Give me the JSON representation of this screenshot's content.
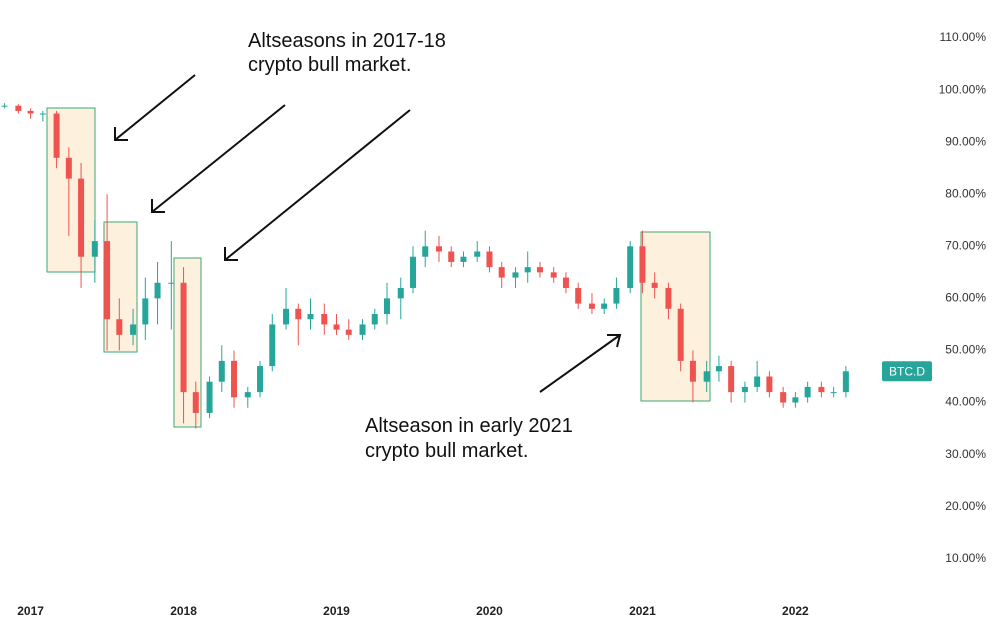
{
  "chart_data": {
    "type": "candlestick",
    "annotations": [
      {
        "lines": [
          "Altseasons in 2017-18",
          "crypto bull market."
        ]
      },
      {
        "lines": [
          "Altseason in early 2021",
          "crypto bull market."
        ]
      }
    ],
    "symbol": "BTC.D",
    "up_color": "#26a69a",
    "down_color": "#ef5350",
    "x": [
      2016.83,
      2016.92,
      2017.0,
      2017.08,
      2017.17,
      2017.25,
      2017.33,
      2017.42,
      2017.5,
      2017.58,
      2017.67,
      2017.75,
      2017.83,
      2017.92,
      2018.0,
      2018.08,
      2018.17,
      2018.25,
      2018.33,
      2018.42,
      2018.5,
      2018.58,
      2018.67,
      2018.75,
      2018.83,
      2018.92,
      2019.0,
      2019.08,
      2019.17,
      2019.25,
      2019.33,
      2019.42,
      2019.5,
      2019.58,
      2019.67,
      2019.75,
      2019.83,
      2019.92,
      2020.0,
      2020.08,
      2020.17,
      2020.25,
      2020.33,
      2020.42,
      2020.5,
      2020.58,
      2020.67,
      2020.75,
      2020.83,
      2020.92,
      2021.0,
      2021.08,
      2021.17,
      2021.25,
      2021.33,
      2021.42,
      2021.5,
      2021.58,
      2021.67,
      2021.75,
      2021.83,
      2021.92,
      2022.0,
      2022.08,
      2022.17,
      2022.25,
      2022.33
    ],
    "open": [
      97,
      97,
      96,
      95.5,
      95.5,
      87,
      83,
      68,
      71,
      56,
      53,
      55,
      60,
      63,
      63,
      42,
      38,
      44,
      48,
      41,
      42,
      47,
      55,
      58,
      56,
      57,
      55,
      54,
      53,
      55,
      57,
      60,
      62,
      68,
      70,
      69,
      67,
      68,
      69,
      66,
      64,
      65,
      66,
      65,
      64,
      62,
      59,
      58,
      59,
      62,
      70,
      63,
      62,
      58,
      48,
      44,
      46,
      47,
      42,
      43,
      45,
      42,
      40,
      41,
      43,
      42,
      42
    ],
    "high": [
      97.5,
      97.3,
      96.5,
      96,
      96,
      89,
      86,
      75,
      80,
      60,
      58,
      64,
      67,
      71,
      66,
      44,
      45,
      51,
      50,
      43,
      48,
      57,
      62,
      59,
      60,
      59,
      57,
      56,
      56,
      58,
      63,
      64,
      70,
      73,
      72,
      70,
      69,
      71,
      70,
      67,
      66,
      69,
      67,
      66,
      65,
      63,
      61,
      60,
      64,
      71,
      73,
      65,
      63,
      59,
      50,
      48,
      49,
      48,
      44,
      48,
      46,
      43,
      42,
      44,
      44,
      43,
      47
    ],
    "low": [
      96.5,
      95.5,
      94.5,
      94,
      85,
      72,
      62,
      63,
      50,
      50,
      51,
      52,
      55,
      54,
      36,
      35,
      37,
      42,
      39,
      39,
      41,
      46,
      54,
      51,
      54,
      53,
      53,
      52,
      52,
      54,
      55,
      56,
      61,
      66,
      67,
      66,
      66,
      67,
      65,
      62,
      62,
      63,
      64,
      63,
      61,
      58,
      57,
      57,
      58,
      61,
      61,
      60,
      56,
      46,
      40,
      42,
      44,
      40,
      40,
      42,
      41,
      39,
      39,
      40,
      41,
      41,
      41
    ],
    "close": [
      97,
      96,
      95.5,
      95.5,
      87,
      83,
      68,
      71,
      56,
      53,
      55,
      60,
      63,
      63,
      42,
      38,
      44,
      48,
      41,
      42,
      47,
      55,
      58,
      56,
      57,
      55,
      54,
      53,
      55,
      57,
      60,
      62,
      68,
      70,
      69,
      67,
      68,
      69,
      66,
      64,
      65,
      66,
      65,
      64,
      62,
      59,
      58,
      59,
      62,
      70,
      63,
      62,
      58,
      48,
      44,
      46,
      47,
      42,
      43,
      45,
      42,
      40,
      41,
      43,
      42,
      42,
      46
    ],
    "xlim": [
      2016.8,
      2022.88
    ],
    "xticks": [
      2017,
      2018,
      2019,
      2020,
      2021,
      2022
    ],
    "ylim": [
      4,
      117.3
    ],
    "yticks": [
      {
        "value": 10,
        "label": "10.00%"
      },
      {
        "value": 20,
        "label": "20.00%"
      },
      {
        "value": 30,
        "label": "30.00%"
      },
      {
        "value": 40,
        "label": "40.00%"
      },
      {
        "value": 50,
        "label": "50.00%"
      },
      {
        "value": 60,
        "label": "60.00%"
      },
      {
        "value": 70,
        "label": "70.00%"
      },
      {
        "value": 80,
        "label": "80.00%"
      },
      {
        "value": 90,
        "label": "90.00%"
      },
      {
        "value": 100,
        "label": "100.00%"
      },
      {
        "value": 110,
        "label": "110.00%"
      }
    ]
  }
}
